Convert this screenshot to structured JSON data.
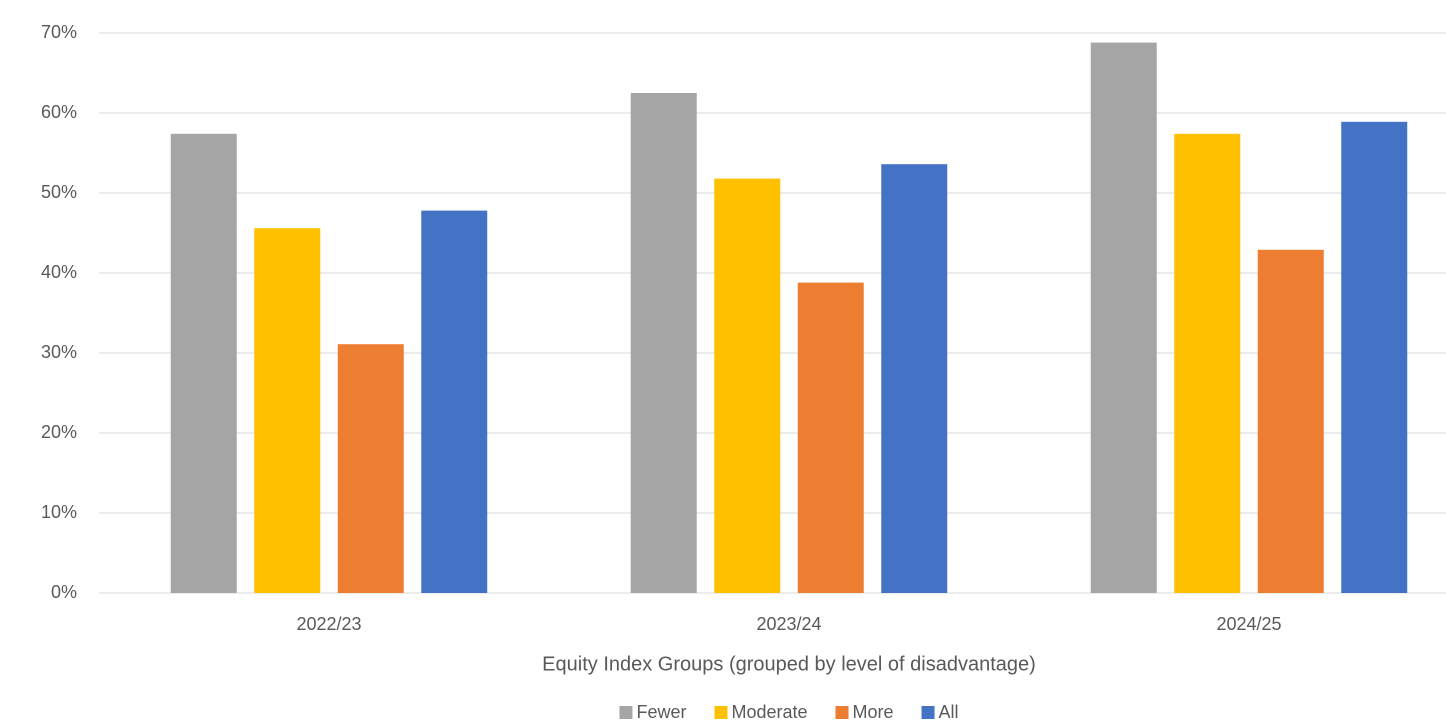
{
  "chart_data": {
    "type": "bar",
    "x_label": "Equity Index Groups (grouped by level of disadvantage)",
    "categories": [
      "2022/23",
      "2023/24",
      "2024/25"
    ],
    "series": [
      {
        "name": "Fewer",
        "color": "#a5a5a5",
        "values": [
          57.4,
          62.5,
          68.8
        ]
      },
      {
        "name": "Moderate",
        "color": "#ffc000",
        "values": [
          45.6,
          51.8,
          57.4
        ]
      },
      {
        "name": "More",
        "color": "#ed7d31",
        "values": [
          31.1,
          38.8,
          42.9
        ]
      },
      {
        "name": "All",
        "color": "#4472c4",
        "values": [
          47.8,
          53.6,
          58.9
        ]
      }
    ],
    "ylim": [
      0,
      70
    ],
    "yticks": [
      {
        "value": 0,
        "label": "0%"
      },
      {
        "value": 10,
        "label": "10%"
      },
      {
        "value": 20,
        "label": "20%"
      },
      {
        "value": 30,
        "label": "30%"
      },
      {
        "value": 40,
        "label": "40%"
      },
      {
        "value": 50,
        "label": "50%"
      },
      {
        "value": 60,
        "label": "60%"
      },
      {
        "value": 70,
        "label": "70%"
      }
    ],
    "grid": true,
    "legend": "bottom"
  }
}
